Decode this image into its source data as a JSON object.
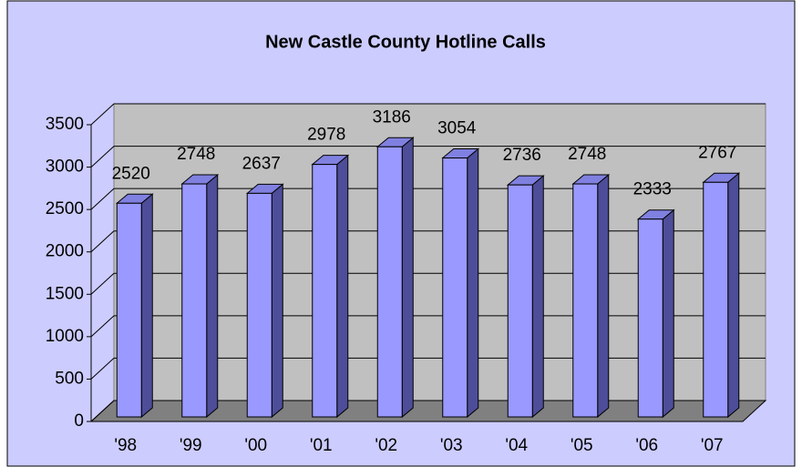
{
  "chart_data": {
    "type": "bar",
    "title": "New Castle County Hotline Calls",
    "categories": [
      "'98",
      "'99",
      "'00",
      "'01",
      "'02",
      "'03",
      "'04",
      "'05",
      "'06",
      "'07"
    ],
    "values": [
      2520,
      2748,
      2637,
      2978,
      3186,
      3054,
      2736,
      2748,
      2333,
      2767
    ],
    "color": "#9999ff",
    "ylim": [
      0,
      3500
    ],
    "yticks": [
      0,
      500,
      1000,
      1500,
      2000,
      2500,
      3000,
      3500
    ],
    "grid": true
  }
}
